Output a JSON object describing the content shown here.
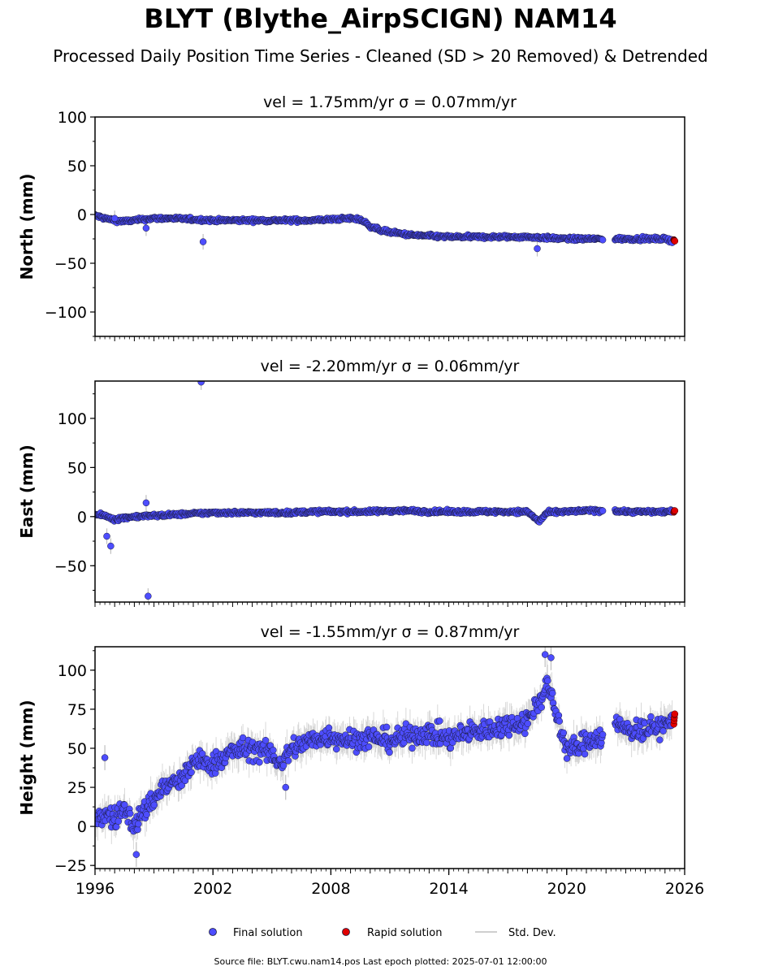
{
  "page": {
    "title": "BLYT (Blythe_AirpSCIGN) NAM14",
    "subtitle": "Processed Daily Position Time Series - Cleaned (SD > 20 Removed) & Detrended",
    "footer": "Source file: BLYT.cwu.nam14.pos  Last epoch plotted: 2025-07-01 12:00:00"
  },
  "colors": {
    "final": "#4d4dff",
    "rapid": "#e00000",
    "stddev": "#bfbfbf",
    "edge": "#1a1a3a"
  },
  "chart_data": [
    {
      "type": "scatter",
      "panel_title": "vel = 1.75mm/yr   σ = 0.07mm/yr",
      "ylabel": "North (mm)",
      "ylim": [
        -125,
        100
      ],
      "yticks": [
        100,
        50,
        0,
        -50,
        -100
      ],
      "ytick_labels": [
        "100",
        "50",
        "0",
        "−50",
        "−100"
      ],
      "xlim": [
        1996.0,
        2026.0
      ],
      "series": [
        {
          "name": "Final solution",
          "x": [
            1996.0,
            1996.5,
            1997.0,
            1997.5,
            1998.0,
            1999.0,
            2000.0,
            2001.0,
            2002.0,
            2003.0,
            2004.0,
            2005.0,
            2006.0,
            2007.0,
            2008.0,
            2009.0,
            2009.5,
            2010.0,
            2010.5,
            2011.0,
            2012.0,
            2013.0,
            2014.0,
            2015.0,
            2016.0,
            2017.0,
            2018.0,
            2019.0,
            2020.0,
            2021.0,
            2021.8,
            2022.5,
            2023.0,
            2024.0,
            2025.0,
            2025.4
          ],
          "y": [
            -1,
            -4,
            -6,
            -7,
            -6,
            -4,
            -4,
            -5,
            -6,
            -6,
            -6,
            -6,
            -6,
            -6,
            -5,
            -4,
            -5,
            -12,
            -16,
            -18,
            -21,
            -22,
            -23,
            -23,
            -23,
            -23,
            -23,
            -24,
            -25,
            -25,
            -25,
            -25,
            -25,
            -25,
            -25,
            -27
          ]
        },
        {
          "name": "Rapid solution",
          "x": [
            2025.45,
            2025.5
          ],
          "y": [
            -26,
            -27
          ]
        }
      ],
      "outliers": {
        "x": [
          1997.0,
          1998.6,
          2001.5,
          2018.5
        ],
        "y": [
          -4,
          -14,
          -28,
          -35
        ]
      }
    },
    {
      "type": "scatter",
      "panel_title": "vel = -2.20mm/yr   σ = 0.06mm/yr",
      "ylabel": "East (mm)",
      "ylim": [
        -87,
        138
      ],
      "yticks": [
        100,
        50,
        0,
        -50
      ],
      "ytick_labels": [
        "100",
        "50",
        "0",
        "−50"
      ],
      "xlim": [
        1996.0,
        2026.0
      ],
      "series": [
        {
          "name": "Final solution",
          "x": [
            1996.0,
            1996.5,
            1997.0,
            1997.5,
            1998.0,
            1999.0,
            2000.0,
            2001.0,
            2002.0,
            2003.0,
            2004.0,
            2005.0,
            2006.0,
            2007.0,
            2008.0,
            2009.0,
            2010.0,
            2011.0,
            2012.0,
            2013.0,
            2014.0,
            2015.0,
            2016.0,
            2017.0,
            2018.0,
            2018.6,
            2019.0,
            2020.0,
            2021.0,
            2021.8,
            2022.5,
            2023.0,
            2024.0,
            2025.0,
            2025.4
          ],
          "y": [
            2,
            1,
            -3,
            -1,
            0,
            1,
            2,
            3,
            4,
            4,
            4,
            4,
            4,
            5,
            5,
            5,
            5,
            6,
            6,
            5,
            5,
            5,
            5,
            5,
            5,
            -5,
            4,
            5,
            6,
            6,
            6,
            5,
            5,
            5,
            5
          ]
        },
        {
          "name": "Rapid solution",
          "x": [
            2025.45,
            2025.5
          ],
          "y": [
            5,
            6
          ]
        }
      ],
      "outliers": {
        "x": [
          1996.6,
          1996.8,
          1998.6,
          1998.7,
          2001.4
        ],
        "y": [
          -20,
          -30,
          14,
          -81,
          137
        ]
      }
    },
    {
      "type": "scatter",
      "panel_title": "vel = -1.55mm/yr   σ = 0.87mm/yr",
      "ylabel": "Height (mm)",
      "ylim": [
        -27,
        115
      ],
      "yticks": [
        100,
        75,
        50,
        25,
        0,
        -25
      ],
      "ytick_labels": [
        "100",
        "75",
        "50",
        "25",
        "0",
        "−25"
      ],
      "xlim": [
        1996.0,
        2026.0
      ],
      "xticks": [
        1996,
        2002,
        2008,
        2014,
        2020,
        2026
      ],
      "xtick_labels": [
        "1996",
        "2002",
        "2008",
        "2014",
        "2020",
        "2026"
      ],
      "series": [
        {
          "name": "Final solution",
          "x": [
            1996.0,
            1996.5,
            1997.0,
            1997.5,
            1998.0,
            1998.5,
            1999.0,
            1999.5,
            2000.0,
            2000.5,
            2001.0,
            2002.0,
            2003.0,
            2004.0,
            2005.0,
            2005.5,
            2006.0,
            2007.0,
            2008.0,
            2009.0,
            2010.0,
            2011.0,
            2012.0,
            2013.0,
            2014.0,
            2015.0,
            2016.0,
            2017.0,
            2018.0,
            2018.6,
            2019.0,
            2019.5,
            2020.0,
            2020.5,
            2021.0,
            2021.8,
            2022.5,
            2023.0,
            2024.0,
            2025.0,
            2025.4
          ],
          "y": [
            5,
            8,
            5,
            12,
            0,
            10,
            18,
            25,
            28,
            30,
            42,
            40,
            48,
            50,
            46,
            40,
            50,
            55,
            58,
            55,
            57,
            55,
            58,
            60,
            56,
            60,
            62,
            65,
            68,
            80,
            92,
            70,
            50,
            50,
            55,
            58,
            65,
            62,
            62,
            65,
            67
          ]
        },
        {
          "name": "Rapid solution",
          "x": [
            2025.45,
            2025.5
          ],
          "y": [
            68,
            72
          ]
        }
      ],
      "outliers": {
        "x": [
          1996.5,
          1998.1,
          2005.7,
          2018.9,
          2019.2
        ],
        "y": [
          44,
          -18,
          25,
          110,
          108
        ]
      }
    }
  ],
  "legend": {
    "placement": "bottom-center",
    "final_label": "Final solution",
    "rapid_label": "Rapid solution",
    "std_label": "Std. Dev."
  }
}
